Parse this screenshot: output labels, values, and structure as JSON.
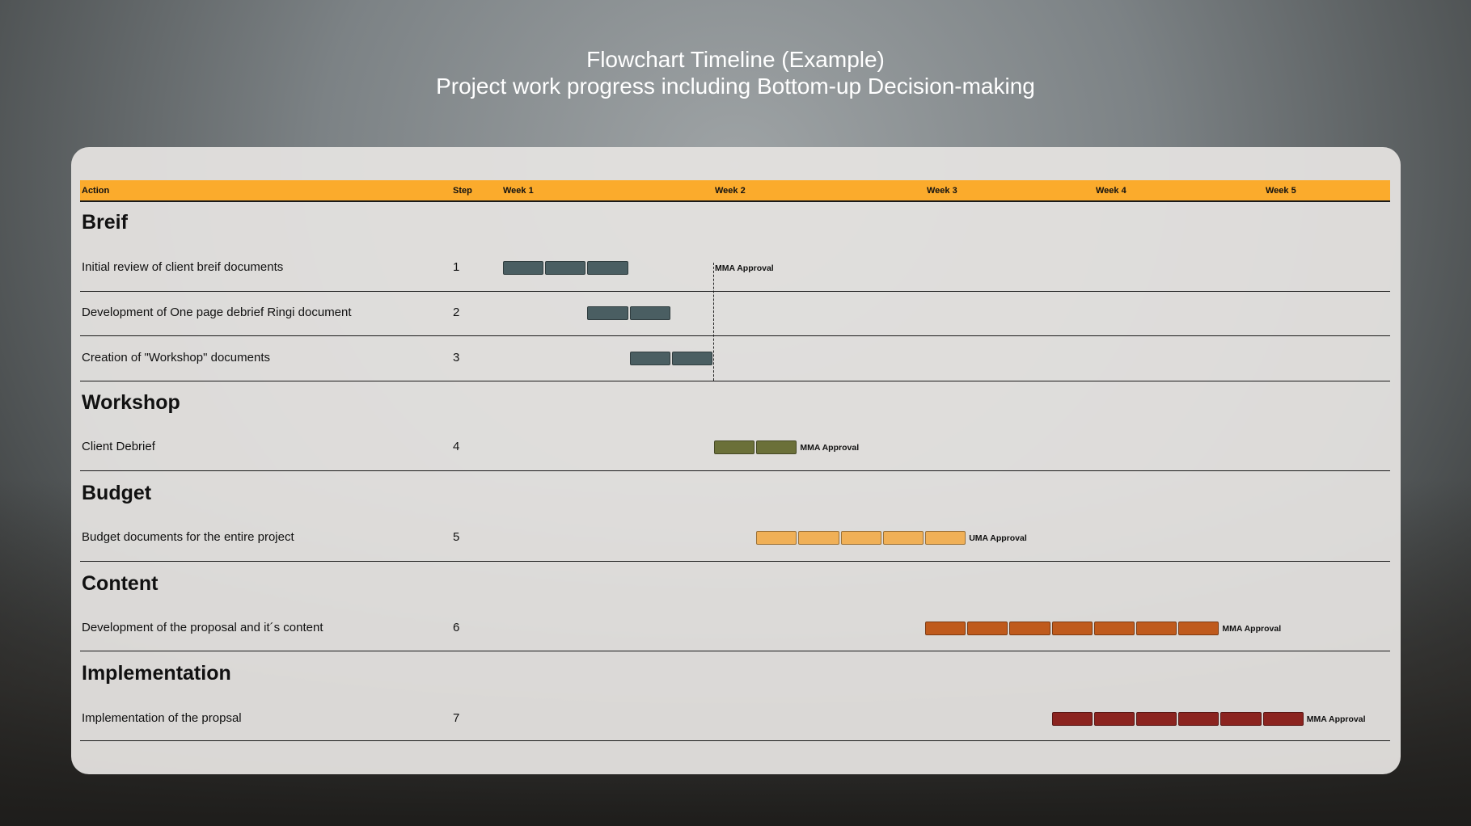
{
  "title": {
    "line1": "Flowchart Timeline (Example)",
    "line2": "Project work progress including Bottom-up Decision-making"
  },
  "header": {
    "action": "Action",
    "step": "Step",
    "weeks": [
      "Week 1",
      "Week 2",
      "Week 3",
      "Week 4",
      "Week 5"
    ]
  },
  "colors": {
    "header": "#fbab2c",
    "breif": "#4a5e62",
    "workshop": "#6b7039",
    "budget": "#f0b057",
    "content": "#bf5a1c",
    "implementation": "#8b231f"
  },
  "sections": [
    {
      "title": "Breif",
      "tasks": [
        {
          "action": "Initial review of client breif documents",
          "step": "1",
          "start_day": 0,
          "days": 3,
          "approval": "MMA Approval"
        },
        {
          "action": "Development of One page debrief Ringi document",
          "step": "2",
          "start_day": 2,
          "days": 2
        },
        {
          "action": "Creation of \"Workshop\" documents",
          "step": "3",
          "start_day": 3,
          "days": 2
        }
      ]
    },
    {
      "title": "Workshop",
      "tasks": [
        {
          "action": "Client Debrief",
          "step": "4",
          "start_day": 5,
          "days": 2,
          "approval": "MMA Approval"
        }
      ]
    },
    {
      "title": "Budget",
      "tasks": [
        {
          "action": "Budget documents for the entire project",
          "step": "5",
          "start_day": 6,
          "days": 5,
          "approval": "UMA Approval"
        }
      ]
    },
    {
      "title": "Content",
      "tasks": [
        {
          "action": "Development of the proposal and   it´s content",
          "step": "6",
          "start_day": 10,
          "days": 7,
          "approval": "MMA Approval"
        }
      ]
    },
    {
      "title": "Implementation",
      "tasks": [
        {
          "action": "Implementation of the propsal",
          "step": "7",
          "start_day": 13,
          "days": 6,
          "approval": "MMA Approval"
        }
      ]
    }
  ]
}
